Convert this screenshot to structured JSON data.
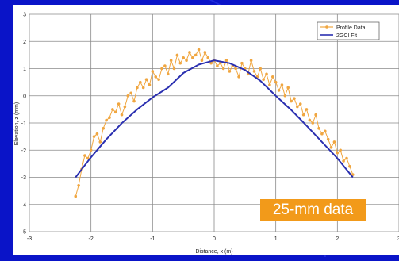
{
  "overlay": {
    "badge_text": "25-mm data",
    "badge_color": "#f29a1a"
  },
  "chart_data": {
    "type": "line",
    "title": "",
    "xlabel": "Distance, x (m)",
    "ylabel": "Elevation, z (mm)",
    "xlim": [
      -3,
      3
    ],
    "ylim": [
      -5,
      3
    ],
    "x_ticks": [
      -3,
      -2,
      -1,
      0,
      1,
      2,
      3
    ],
    "y_ticks": [
      -5,
      -4,
      -3,
      -2,
      -1,
      0,
      1,
      2,
      3
    ],
    "grid": true,
    "legend_position": "top-right",
    "series": [
      {
        "name": "Profile Data",
        "style": "line-markers",
        "color": "#f0a640",
        "x": [
          -2.25,
          -2.2,
          -2.15,
          -2.1,
          -2.05,
          -2.0,
          -1.95,
          -1.9,
          -1.85,
          -1.8,
          -1.75,
          -1.7,
          -1.65,
          -1.6,
          -1.55,
          -1.5,
          -1.45,
          -1.4,
          -1.35,
          -1.3,
          -1.25,
          -1.2,
          -1.15,
          -1.1,
          -1.05,
          -1.0,
          -0.95,
          -0.9,
          -0.85,
          -0.8,
          -0.75,
          -0.7,
          -0.65,
          -0.6,
          -0.55,
          -0.5,
          -0.45,
          -0.4,
          -0.35,
          -0.3,
          -0.25,
          -0.2,
          -0.15,
          -0.1,
          -0.05,
          0.0,
          0.05,
          0.1,
          0.15,
          0.2,
          0.25,
          0.3,
          0.35,
          0.4,
          0.45,
          0.5,
          0.55,
          0.6,
          0.65,
          0.7,
          0.75,
          0.8,
          0.85,
          0.9,
          0.95,
          1.0,
          1.05,
          1.1,
          1.15,
          1.2,
          1.25,
          1.3,
          1.35,
          1.4,
          1.45,
          1.5,
          1.55,
          1.6,
          1.65,
          1.7,
          1.75,
          1.8,
          1.85,
          1.9,
          1.95,
          2.0,
          2.05,
          2.1,
          2.15,
          2.2,
          2.25
        ],
        "y": [
          -3.7,
          -3.3,
          -2.7,
          -2.2,
          -2.3,
          -2.0,
          -1.5,
          -1.4,
          -1.7,
          -1.2,
          -0.9,
          -0.8,
          -0.5,
          -0.6,
          -0.3,
          -0.7,
          -0.4,
          0.0,
          0.1,
          -0.2,
          0.3,
          0.5,
          0.3,
          0.6,
          0.4,
          0.9,
          0.7,
          0.6,
          1.0,
          1.1,
          0.8,
          1.3,
          1.0,
          1.5,
          1.2,
          1.4,
          1.3,
          1.6,
          1.4,
          1.5,
          1.7,
          1.3,
          1.6,
          1.4,
          1.2,
          1.3,
          1.1,
          1.2,
          1.0,
          1.3,
          0.9,
          1.1,
          1.0,
          0.7,
          1.2,
          1.0,
          0.8,
          1.3,
          0.9,
          0.7,
          1.0,
          0.6,
          0.8,
          0.4,
          0.7,
          0.5,
          0.2,
          0.4,
          0.0,
          0.3,
          -0.2,
          -0.1,
          -0.4,
          -0.3,
          -0.7,
          -0.5,
          -0.9,
          -1.0,
          -0.7,
          -1.2,
          -1.4,
          -1.3,
          -1.6,
          -1.9,
          -1.7,
          -2.1,
          -2.0,
          -2.4,
          -2.3,
          -2.6,
          -2.9
        ]
      },
      {
        "name": "2GCI Fit",
        "style": "line",
        "color": "#2a2fb0",
        "x": [
          -2.25,
          -2.0,
          -1.75,
          -1.5,
          -1.25,
          -1.0,
          -0.75,
          -0.5,
          -0.25,
          0.0,
          0.25,
          0.5,
          0.75,
          1.0,
          1.25,
          1.5,
          1.75,
          2.0,
          2.25
        ],
        "y": [
          -3.0,
          -2.26,
          -1.6,
          -1.01,
          -0.5,
          -0.06,
          0.3,
          0.84,
          1.15,
          1.3,
          1.2,
          0.95,
          0.55,
          0.0,
          -0.52,
          -1.1,
          -1.7,
          -2.3,
          -3.0
        ]
      }
    ]
  }
}
